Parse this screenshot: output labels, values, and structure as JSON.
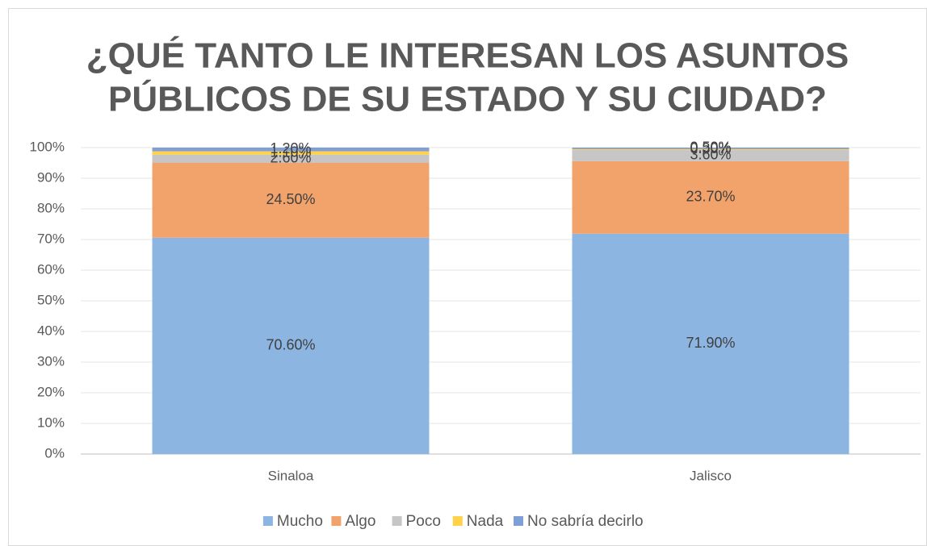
{
  "chart_data": {
    "type": "stacked_bar",
    "title": [
      "¿QUÉ TANTO LE INTERESAN LOS ASUNTOS",
      "PÚBLICOS DE SU ESTADO Y SU CIUDAD?"
    ],
    "categories": [
      "Sinaloa",
      "Jalisco"
    ],
    "series": [
      {
        "name": "Mucho",
        "color": "#8cb5e1",
        "values": [
          70.6,
          71.9
        ],
        "value_labels": [
          "70.60%",
          "71.90%"
        ]
      },
      {
        "name": "Algo",
        "color": "#f2a36c",
        "values": [
          24.5,
          23.7
        ],
        "value_labels": [
          "24.50%",
          "23.70%"
        ]
      },
      {
        "name": "Poco",
        "color": "#c6c6c6",
        "values": [
          2.6,
          3.6
        ],
        "value_labels": [
          "2.60%",
          "3.60%"
        ]
      },
      {
        "name": "Nada",
        "color": "#ffd24a",
        "values": [
          1.1,
          0.3
        ],
        "value_labels": [
          "1.10%",
          "0.30%"
        ]
      },
      {
        "name": "No sabría decirlo",
        "color": "#7f9fd6",
        "values": [
          1.2,
          0.5
        ],
        "value_labels": [
          "1.20%",
          "0.50%"
        ]
      }
    ],
    "ylim": [
      0,
      100
    ],
    "yticks": [
      {
        "value": 0,
        "label": "0%"
      },
      {
        "value": 10,
        "label": "10%"
      },
      {
        "value": 20,
        "label": "20%"
      },
      {
        "value": 30,
        "label": "30%"
      },
      {
        "value": 40,
        "label": "40%"
      },
      {
        "value": 50,
        "label": "50%"
      },
      {
        "value": 60,
        "label": "60%"
      },
      {
        "value": 70,
        "label": "70%"
      },
      {
        "value": 80,
        "label": "80%"
      },
      {
        "value": 90,
        "label": "90%"
      },
      {
        "value": 100,
        "label": "100%"
      }
    ],
    "grid": true,
    "legend": "bottom"
  }
}
